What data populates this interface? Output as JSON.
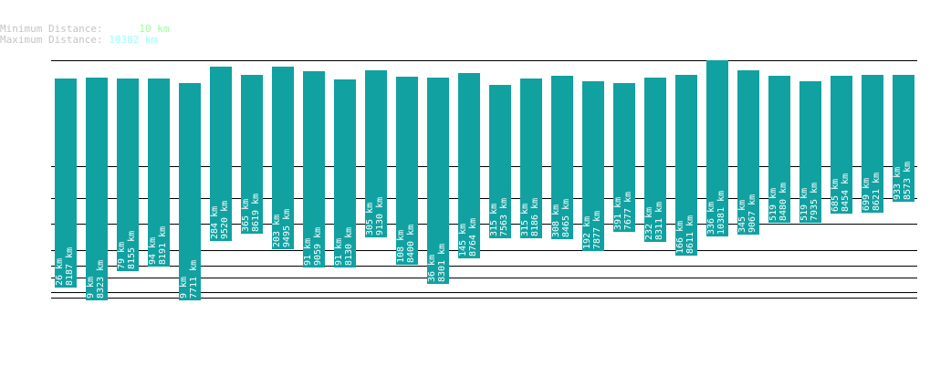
{
  "legend": {
    "min_label": "Minimum Distance:",
    "min_value": "10 km",
    "max_label": "Maximum Distance:",
    "max_value": "10382 km",
    "min_color": "#99ff99",
    "max_color": "#99ffff"
  },
  "chart_data": {
    "type": "bar",
    "bar_color": "#11a1a1",
    "grid": "horizontal lines",
    "bars": [
      {
        "top": "26 km",
        "bottom": "8187 km"
      },
      {
        "top": "9 km",
        "bottom": "8323 km"
      },
      {
        "top": "79 km",
        "bottom": "8155 km"
      },
      {
        "top": "94 km",
        "bottom": "8191 km"
      },
      {
        "top": "9 km",
        "bottom": "7711 km"
      },
      {
        "top": "284 km",
        "bottom": "9520 km"
      },
      {
        "top": "365 km",
        "bottom": "8619 km"
      },
      {
        "top": "203 km",
        "bottom": "9495 km"
      },
      {
        "top": "91 km",
        "bottom": "9059 km"
      },
      {
        "top": "91 km",
        "bottom": "8130 km"
      },
      {
        "top": "305 km",
        "bottom": "9130 km"
      },
      {
        "top": "108 km",
        "bottom": "8400 km"
      },
      {
        "top": "36 km",
        "bottom": "8301 km"
      },
      {
        "top": "145 km",
        "bottom": "8764 km"
      },
      {
        "top": "315 km",
        "bottom": "7563 km"
      },
      {
        "top": "315 km",
        "bottom": "8186 km"
      },
      {
        "top": "308 km",
        "bottom": "8465 km"
      },
      {
        "top": "192 km",
        "bottom": "7877 km"
      },
      {
        "top": "391 km",
        "bottom": "7677 km"
      },
      {
        "top": "232 km",
        "bottom": "8311 km"
      },
      {
        "top": "166 km",
        "bottom": "8611 km"
      },
      {
        "top": "336 km",
        "bottom": "10381 km"
      },
      {
        "top": "345 km",
        "bottom": "9067 km"
      },
      {
        "top": "519 km",
        "bottom": "8480 km"
      },
      {
        "top": "519 km",
        "bottom": "7935 km"
      },
      {
        "top": "685 km",
        "bottom": "8454 km"
      },
      {
        "top": "699 km",
        "bottom": "8621 km"
      },
      {
        "top": "933 km",
        "bottom": "8573 km"
      }
    ]
  }
}
